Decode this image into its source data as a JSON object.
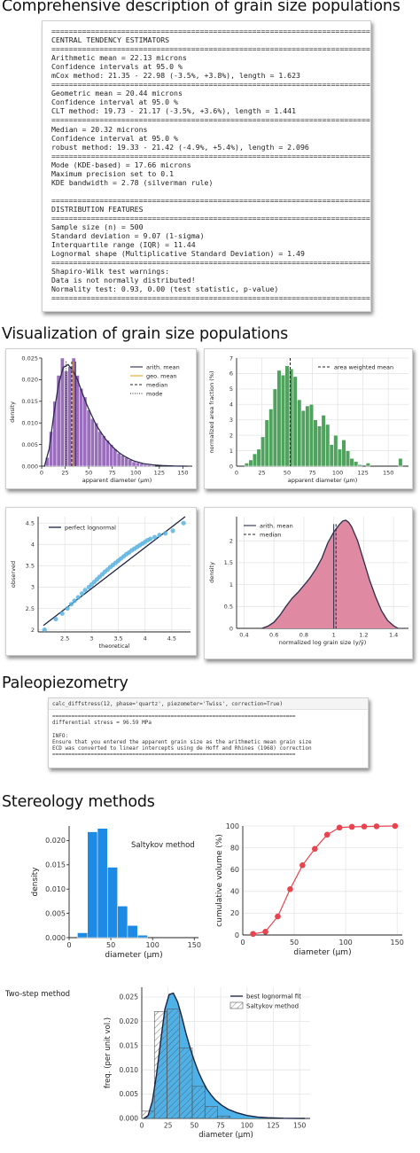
{
  "headings": {
    "comprehensive": "Comprehensive description of grain size populations",
    "visualization": "Visualization of grain size populations",
    "paleopiezometry": "Paleopiezometry",
    "stereology": "Stereology methods"
  },
  "report_lines": [
    "============================================================================",
    "CENTRAL TENDENCY ESTIMATORS",
    "============================================================================",
    "Arithmetic mean = 22.13 microns",
    "Confidence intervals at 95.0 %",
    "mCox method: 21.35 - 22.98 (-3.5%, +3.8%), length = 1.623",
    "============================================================================",
    "Geometric mean = 20.44 microns",
    "Confidence interval at 95.0 %",
    "CLT method: 19.73 - 21.17 (-3.5%, +3.6%), length = 1.441",
    "============================================================================",
    "Median = 20.32 microns",
    "Confidence interval at 95.0 %",
    "robust method: 19.33 - 21.42 (-4.9%, +5.4%), length = 2.096",
    "============================================================================",
    "Mode (KDE-based) = 17.66 microns",
    "Maximum precision set to 0.1",
    "KDE bandwidth = 2.78 (silverman rule)",
    "",
    "============================================================================",
    "DISTRIBUTION FEATURES",
    "============================================================================",
    "Sample size (n) = 500",
    "Standard deviation = 9.07 (1-sigma)",
    "Interquartile range (IQR) = 11.44",
    "Lognormal shape (Multiplicative Standard Deviation) = 1.49",
    "============================================================================",
    "Shapiro-Wilk test warnings:",
    "Data is not normally distributed!",
    "Normality test: 0.93, 0.00 (test statistic, p-value)",
    "============================================================================"
  ],
  "piezo": {
    "command": "calc_diffstress(12, phase='quartz', piezometer='Twiss', correction=True)",
    "lines": [
      "============================================================================",
      "differential stress = 96.59 MPa",
      "",
      "INFO:",
      "Ensure that you entered the apparent grain size as the arithmetic mean grain size",
      "ECD was converted to linear intercepts using de Hoff and Rhines (1968) correction",
      "============================================================================"
    ]
  },
  "chart_data": [
    {
      "id": "apparent_hist",
      "type": "bar",
      "xlabel": "apparent diameter (μm)",
      "ylabel": "density",
      "xlim": [
        0,
        160
      ],
      "ylim": [
        0,
        0.025
      ],
      "xticks": [
        0,
        25,
        50,
        75,
        100,
        125,
        150
      ],
      "yticks": [
        0.0,
        0.005,
        0.01,
        0.015,
        0.02,
        0.025
      ],
      "ytick_labels": [
        "0.000",
        "0.005",
        "0.010",
        "0.015",
        "0.020",
        "0.025"
      ],
      "bin_width": 4,
      "bin_start": 4,
      "values": [
        0.002,
        0.008,
        0.015,
        0.021,
        0.025,
        0.022,
        0.023,
        0.025,
        0.021,
        0.018,
        0.016,
        0.013,
        0.011,
        0.01,
        0.008,
        0.007,
        0.006,
        0.005,
        0.004,
        0.003,
        0.0025,
        0.002,
        0.0015,
        0.001,
        0.0008,
        0.0006,
        0.0004,
        0.0003,
        0.0002
      ],
      "kde_x": [
        3,
        8,
        13,
        18,
        23,
        28,
        33,
        38,
        43,
        48,
        53,
        58,
        63,
        68,
        73,
        78,
        83,
        88,
        93,
        98,
        108,
        118,
        128,
        140,
        155
      ],
      "kde_y": [
        0.0,
        0.004,
        0.012,
        0.019,
        0.0228,
        0.0235,
        0.0222,
        0.02,
        0.017,
        0.0142,
        0.0118,
        0.0095,
        0.0078,
        0.0062,
        0.005,
        0.0039,
        0.003,
        0.0023,
        0.0017,
        0.0012,
        0.0006,
        0.0003,
        0.00015,
        5e-05,
        0.0
      ],
      "lines": {
        "arith_mean": 36,
        "geo_mean": 33,
        "median": 32,
        "mode": 26
      },
      "legend": [
        "arith. mean",
        "geo. mean",
        "median",
        "mode"
      ],
      "colors": {
        "bars": "#9a6dbd",
        "kde": "#2a2d4a",
        "geo": "#e8a32b"
      }
    },
    {
      "id": "area_weighted",
      "type": "bar",
      "xlabel": "apparent diameter (μm)",
      "ylabel": "normalized area fraction (%)",
      "xlim": [
        0,
        170
      ],
      "ylim": [
        0,
        7
      ],
      "xticks": [
        0,
        25,
        50,
        75,
        100,
        125,
        150
      ],
      "yticks": [
        0,
        1,
        2,
        3,
        4,
        5,
        6,
        7
      ],
      "bin_width": 4,
      "bin_start": 8,
      "values": [
        0.2,
        0.4,
        0.8,
        1.1,
        1.9,
        3.0,
        3.7,
        5.0,
        6.2,
        5.9,
        6.5,
        6.3,
        5.8,
        4.3,
        3.6,
        3.9,
        4.0,
        3.0,
        2.6,
        3.3,
        2.7,
        1.4,
        2.0,
        1.1,
        1.7,
        1.0,
        0.5,
        0.3,
        0.1,
        0,
        0.2,
        0,
        0,
        0,
        0,
        0,
        0,
        0,
        0.5
      ],
      "values_tail": [
        [
          125.5,
          0.2
        ],
        [
          160.5,
          0.5
        ]
      ],
      "mean_line": 53,
      "legend": [
        "area weighted mean"
      ],
      "colors": {
        "bars": "#4fa35d"
      }
    },
    {
      "id": "qq",
      "type": "scatter",
      "xlabel": "theoretical",
      "ylabel": "observed",
      "xlim": [
        2.0,
        4.85
      ],
      "ylim": [
        1.95,
        4.65
      ],
      "xticks": [
        2.5,
        3.0,
        3.5,
        4.0,
        4.5
      ],
      "yticks": [
        2.0,
        2.5,
        3.0,
        3.5,
        4.0,
        4.5
      ],
      "line": [
        [
          2.1,
          2.1
        ],
        [
          4.75,
          4.65
        ]
      ],
      "x": [
        2.12,
        2.33,
        2.45,
        2.55,
        2.62,
        2.68,
        2.75,
        2.82,
        2.88,
        2.95,
        3.0,
        3.05,
        3.1,
        3.15,
        3.2,
        3.25,
        3.3,
        3.35,
        3.4,
        3.45,
        3.5,
        3.55,
        3.6,
        3.65,
        3.7,
        3.75,
        3.8,
        3.85,
        3.9,
        3.95,
        4.0,
        4.05,
        4.1,
        4.18,
        4.27,
        4.38,
        4.52,
        4.72
      ],
      "y": [
        2.0,
        2.25,
        2.38,
        2.5,
        2.6,
        2.68,
        2.76,
        2.85,
        2.93,
        3.0,
        3.06,
        3.12,
        3.18,
        3.24,
        3.3,
        3.36,
        3.41,
        3.47,
        3.52,
        3.57,
        3.62,
        3.67,
        3.72,
        3.77,
        3.81,
        3.86,
        3.9,
        3.94,
        3.98,
        4.02,
        4.06,
        4.1,
        4.13,
        4.17,
        4.22,
        4.26,
        4.32,
        4.5
      ],
      "legend": [
        "perfect lognormal"
      ],
      "colors": {
        "points": "#5bb3df",
        "line": "#1a2340"
      }
    },
    {
      "id": "normalized_log",
      "type": "area",
      "xlabel": "normalized log grain size (y/ȳ)",
      "ylabel": "density",
      "xlim": [
        0.35,
        1.5
      ],
      "ylim": [
        0,
        2.55
      ],
      "xticks": [
        0.4,
        0.6,
        0.8,
        1.0,
        1.2,
        1.4
      ],
      "yticks": [
        0.0,
        0.5,
        1.0,
        1.5,
        2.0
      ],
      "x": [
        0.52,
        0.56,
        0.6,
        0.64,
        0.68,
        0.72,
        0.76,
        0.8,
        0.84,
        0.88,
        0.92,
        0.96,
        1.0,
        1.04,
        1.06,
        1.08,
        1.1,
        1.12,
        1.16,
        1.2,
        1.24,
        1.28,
        1.32,
        1.36,
        1.4,
        1.43
      ],
      "y": [
        0.0,
        0.05,
        0.14,
        0.3,
        0.5,
        0.68,
        0.82,
        0.98,
        1.15,
        1.35,
        1.6,
        1.95,
        2.2,
        2.38,
        2.45,
        2.47,
        2.42,
        2.32,
        2.0,
        1.55,
        1.1,
        0.72,
        0.4,
        0.18,
        0.06,
        0.0
      ],
      "lines": {
        "arith_mean": 1.0,
        "median": 1.015
      },
      "legend": [
        "arith. mean",
        "median"
      ],
      "colors": {
        "fill": "#e089a3",
        "line": "#2a2d4a"
      }
    },
    {
      "id": "saltykov",
      "type": "bar",
      "title": "Saltykov method",
      "xlabel": "diameter (μm)",
      "ylabel": "density",
      "xlim": [
        0,
        155
      ],
      "ylim": [
        0,
        0.023
      ],
      "xticks": [
        0,
        50,
        100,
        150
      ],
      "yticks": [
        0.0,
        0.005,
        0.01,
        0.015,
        0.02
      ],
      "ytick_labels": [
        "0.000",
        "0.005",
        "0.010",
        "0.015",
        "0.020"
      ],
      "bin_edges": [
        10,
        22,
        34,
        46,
        58,
        70,
        82,
        94
      ],
      "values": [
        0.001,
        0.0218,
        0.0225,
        0.0145,
        0.0065,
        0.0025,
        0.0005
      ],
      "colors": {
        "bars": "#1d8ae6"
      }
    },
    {
      "id": "cumulative",
      "type": "line",
      "xlabel": "diameter (μm)",
      "ylabel": "cumulative volume (%)",
      "xlim": [
        0,
        155
      ],
      "ylim": [
        0,
        100
      ],
      "xticks": [
        0,
        50,
        100,
        150
      ],
      "yticks": [
        0,
        20,
        40,
        60,
        80,
        100
      ],
      "x": [
        10,
        22,
        34,
        46,
        58,
        70,
        82,
        94,
        106,
        118,
        130,
        148
      ],
      "y": [
        1,
        3,
        17,
        42,
        64,
        79,
        92,
        98.5,
        99.2,
        99.5,
        99.7,
        100
      ],
      "colors": {
        "points": "#e8444f"
      }
    },
    {
      "id": "two_step",
      "type": "bar",
      "title": "Two-step method",
      "xlabel": "diameter (μm)",
      "ylabel": "freq. (per unit vol.)",
      "xlim": [
        0,
        160
      ],
      "ylim": [
        0,
        0.027
      ],
      "xticks": [
        0,
        25,
        50,
        75,
        100,
        125,
        150
      ],
      "yticks": [
        0.0,
        0.005,
        0.01,
        0.015,
        0.02,
        0.025
      ],
      "ytick_labels": [
        "0.000",
        "0.005",
        "0.010",
        "0.015",
        "0.020",
        "0.025"
      ],
      "bin_edges": [
        0,
        12,
        24,
        36,
        48,
        60,
        72,
        84
      ],
      "values": [
        0.0015,
        0.022,
        0.0225,
        0.0145,
        0.0066,
        0.0025,
        0.0005
      ],
      "curve_x": [
        2,
        6,
        10,
        14,
        18,
        22,
        26,
        30,
        34,
        38,
        42,
        46,
        50,
        54,
        58,
        62,
        66,
        70,
        76,
        82,
        90,
        100,
        110,
        120,
        135,
        155
      ],
      "curve_y": [
        0,
        0.0006,
        0.0035,
        0.009,
        0.016,
        0.0225,
        0.0255,
        0.0258,
        0.024,
        0.021,
        0.0175,
        0.0145,
        0.0118,
        0.0095,
        0.0076,
        0.006,
        0.0048,
        0.0038,
        0.0027,
        0.0019,
        0.0012,
        0.0006,
        0.0003,
        0.00015,
        4e-05,
        0.0
      ],
      "legend": [
        "best lognormal fit",
        "Saltykov method"
      ],
      "colors": {
        "fill": "#3ba8e6",
        "line": "#1a2340"
      }
    }
  ]
}
